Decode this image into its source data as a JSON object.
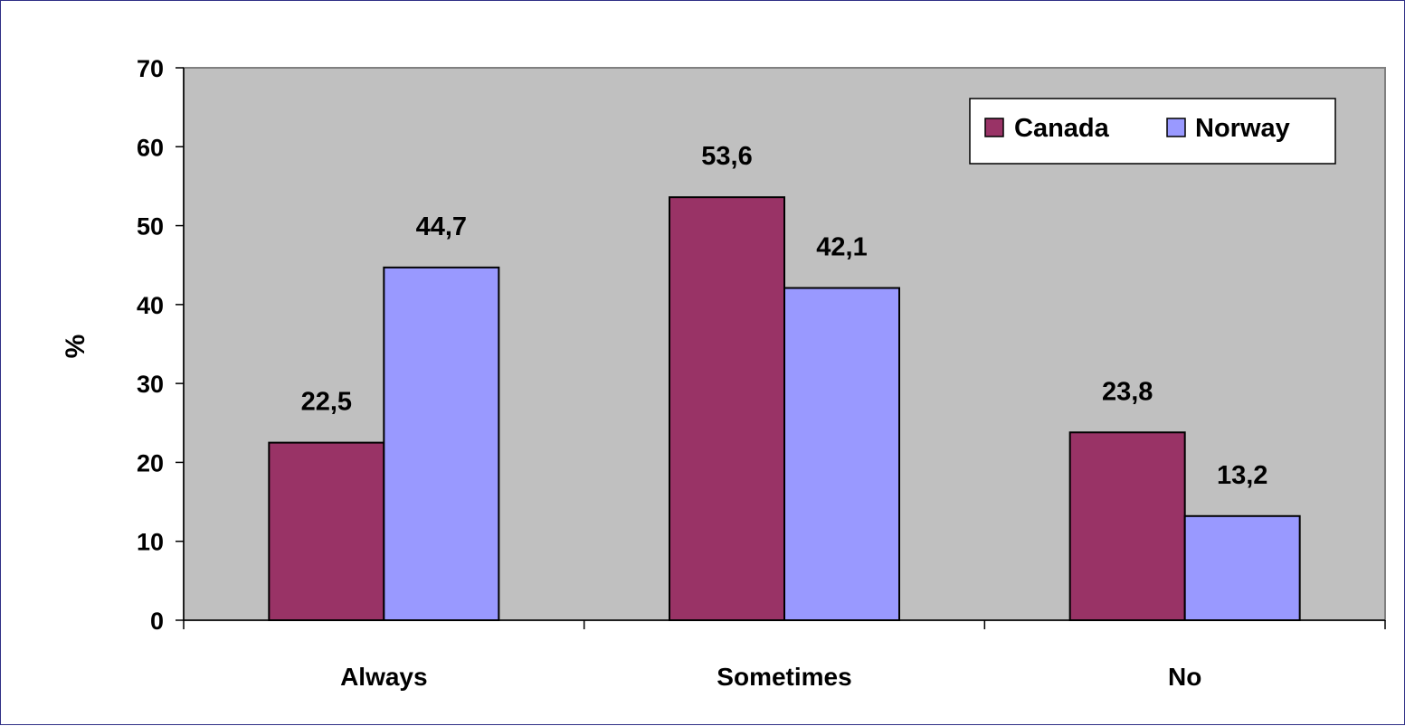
{
  "chart_data": {
    "type": "bar",
    "title": "",
    "xlabel": "",
    "ylabel": "%",
    "ylim": [
      0,
      70
    ],
    "yticks": [
      0,
      10,
      20,
      30,
      40,
      50,
      60,
      70
    ],
    "categories": [
      "Always",
      "Sometimes",
      "No"
    ],
    "series": [
      {
        "name": "Canada",
        "values": [
          22.5,
          53.6,
          23.8
        ],
        "labels": [
          "22,5",
          "53,6",
          "23,8"
        ],
        "color": "#993366"
      },
      {
        "name": "Norway",
        "values": [
          44.7,
          42.1,
          13.2
        ],
        "labels": [
          "44,7",
          "42,1",
          "13,2"
        ],
        "color": "#9999ff"
      }
    ],
    "plot_background": "#c0c0c0",
    "grid": false,
    "legend": "top-right",
    "data_labels": true
  }
}
